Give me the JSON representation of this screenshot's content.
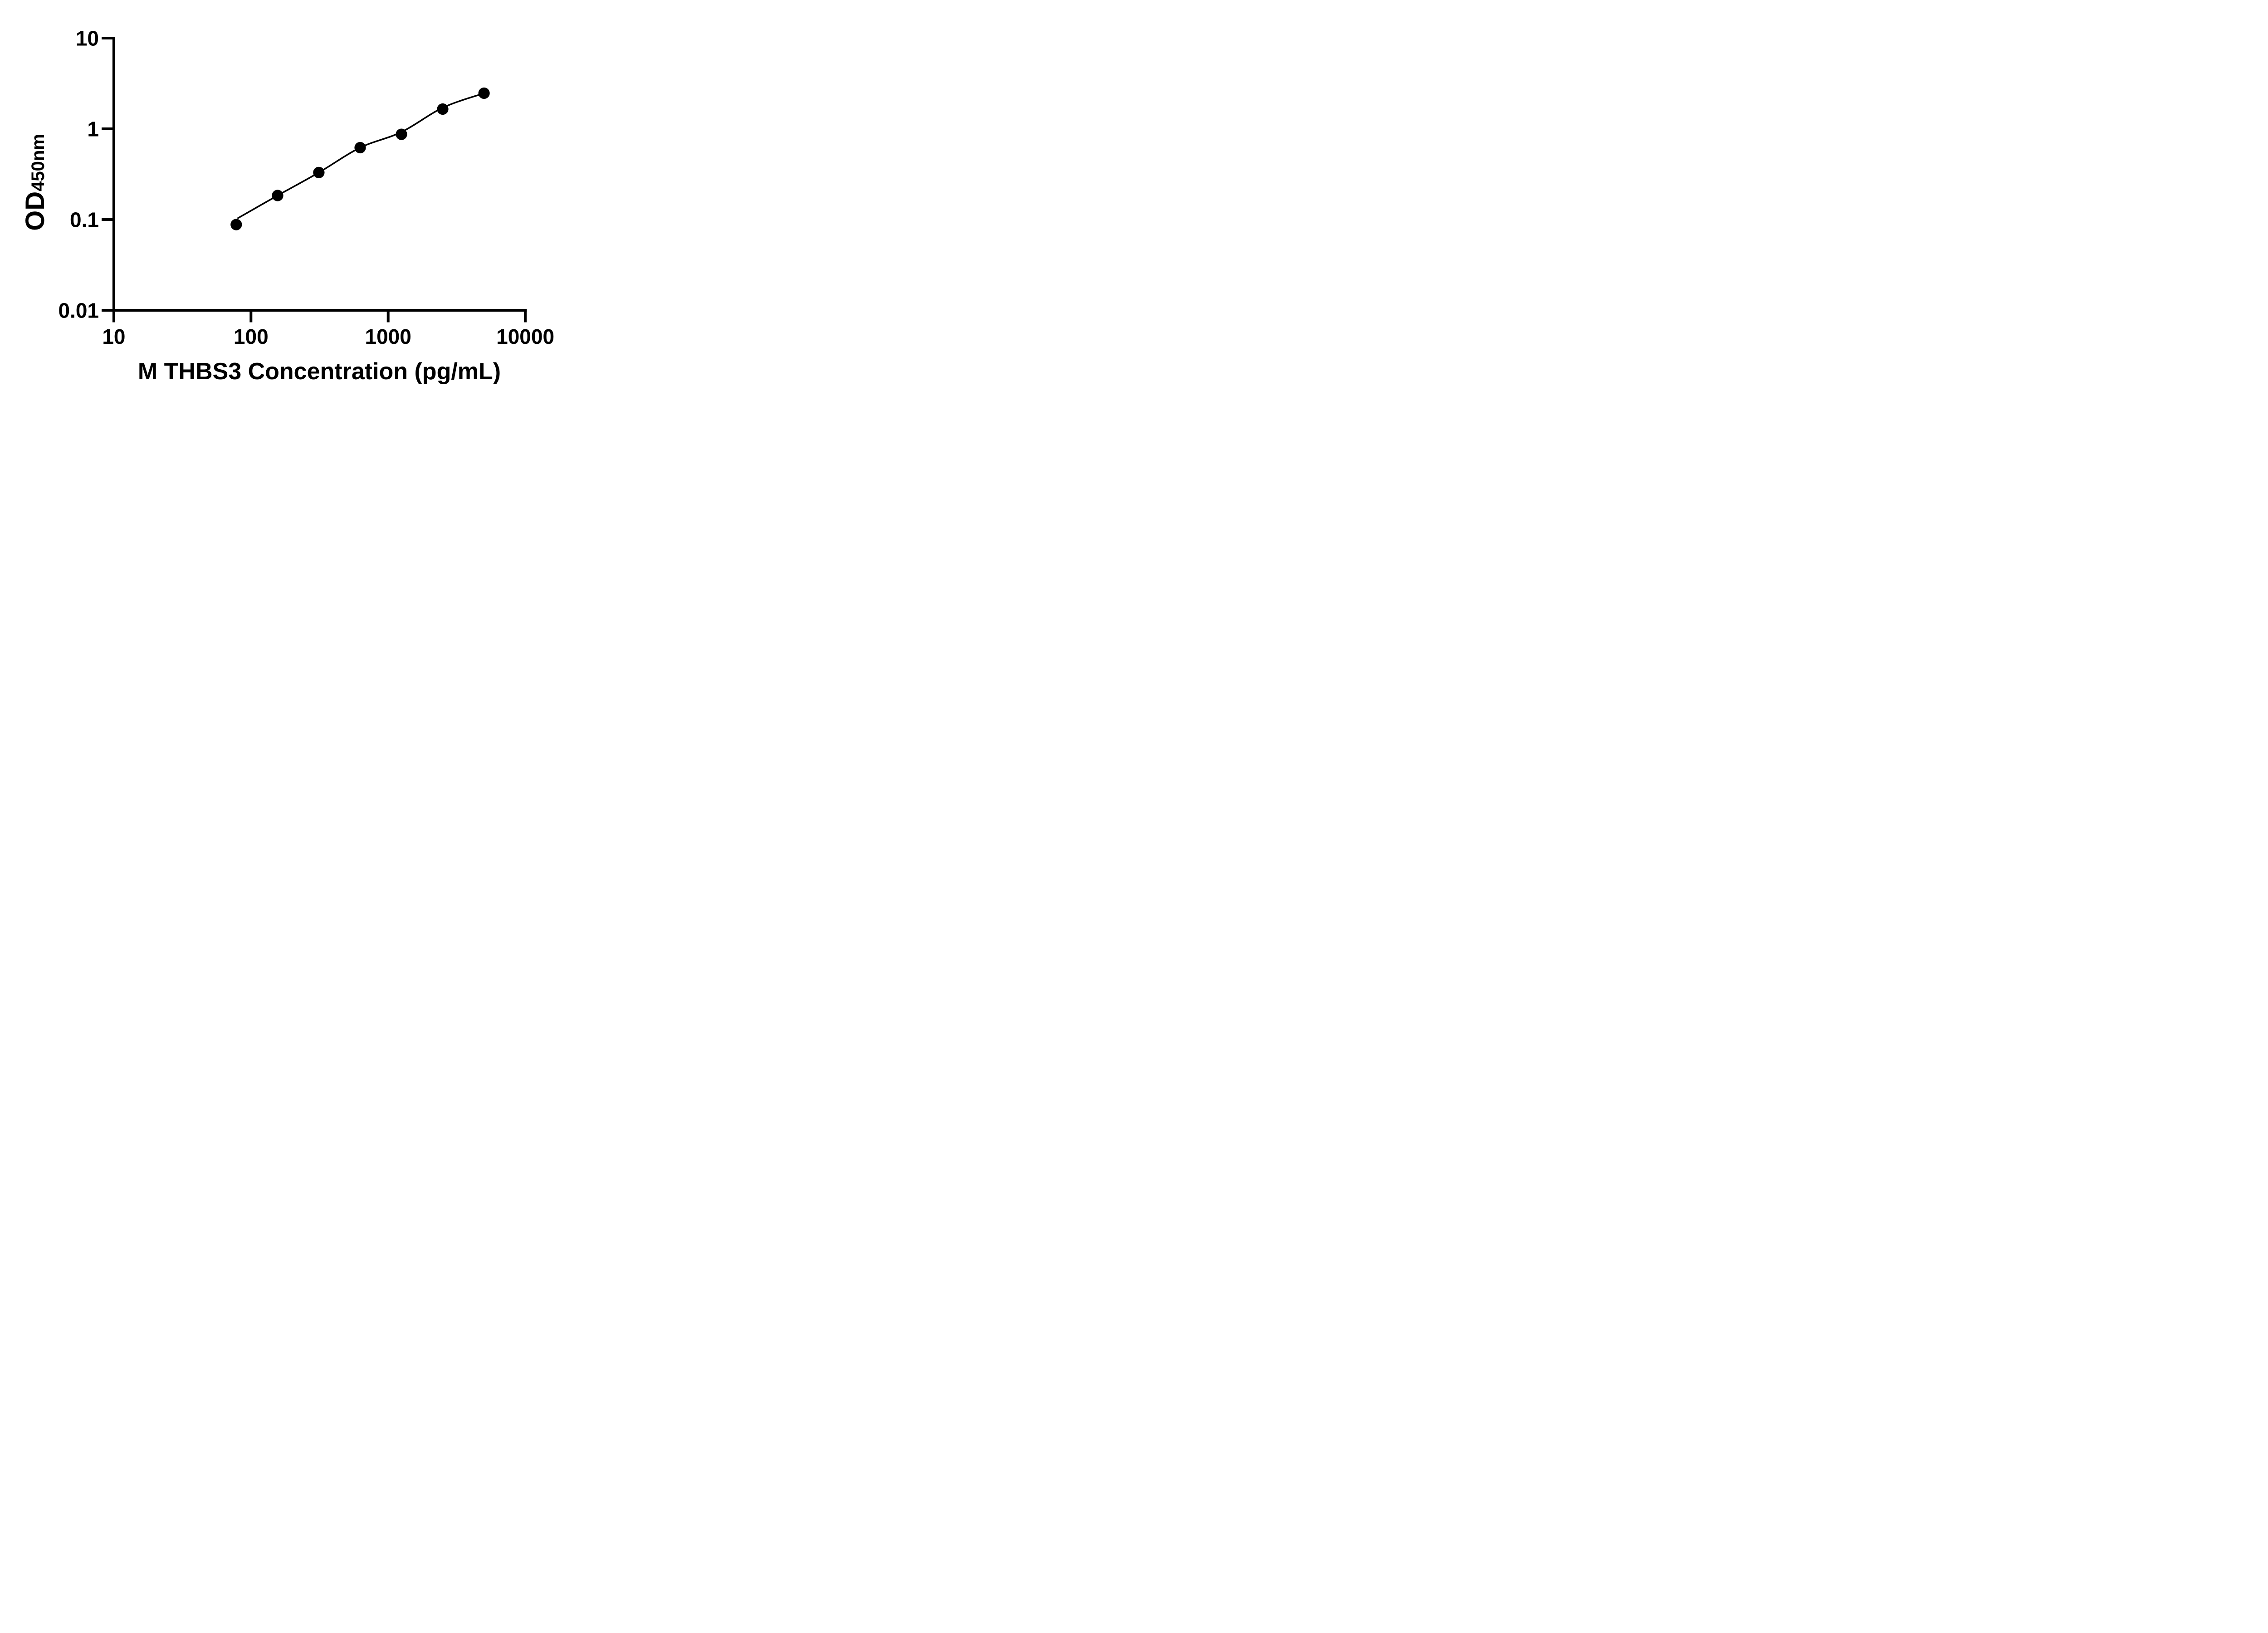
{
  "figure": {
    "background_color": "#ffffff",
    "ink_color": "#000000"
  },
  "chart_data": {
    "type": "scatter",
    "title": "",
    "xlabel": "M THBS3 Concentration (pg/mL)",
    "ylabel": "OD450nm",
    "ylabel_main": "OD",
    "ylabel_sub": "450nm",
    "x_scale": "log",
    "y_scale": "log",
    "xlim": [
      10,
      10000
    ],
    "ylim": [
      0.01,
      10
    ],
    "grid": "off",
    "legend": "none",
    "x_ticks": [
      {
        "value": 10,
        "label": "10"
      },
      {
        "value": 100,
        "label": "100"
      },
      {
        "value": 1000,
        "label": "1000"
      },
      {
        "value": 10000,
        "label": "10000"
      }
    ],
    "y_ticks": [
      {
        "value": 10,
        "label": "10"
      },
      {
        "value": 1,
        "label": "1"
      },
      {
        "value": 0.1,
        "label": "0.1"
      },
      {
        "value": 0.01,
        "label": "0.01"
      }
    ],
    "series": [
      {
        "marker": "filled-circle",
        "color": "#000000",
        "fit_curve": true,
        "points": [
          {
            "x": 78.1,
            "y": 0.088
          },
          {
            "x": 156.3,
            "y": 0.184
          },
          {
            "x": 312.5,
            "y": 0.33
          },
          {
            "x": 625,
            "y": 0.62
          },
          {
            "x": 1250,
            "y": 0.87
          },
          {
            "x": 2500,
            "y": 1.65
          },
          {
            "x": 5000,
            "y": 2.47
          }
        ]
      }
    ]
  }
}
